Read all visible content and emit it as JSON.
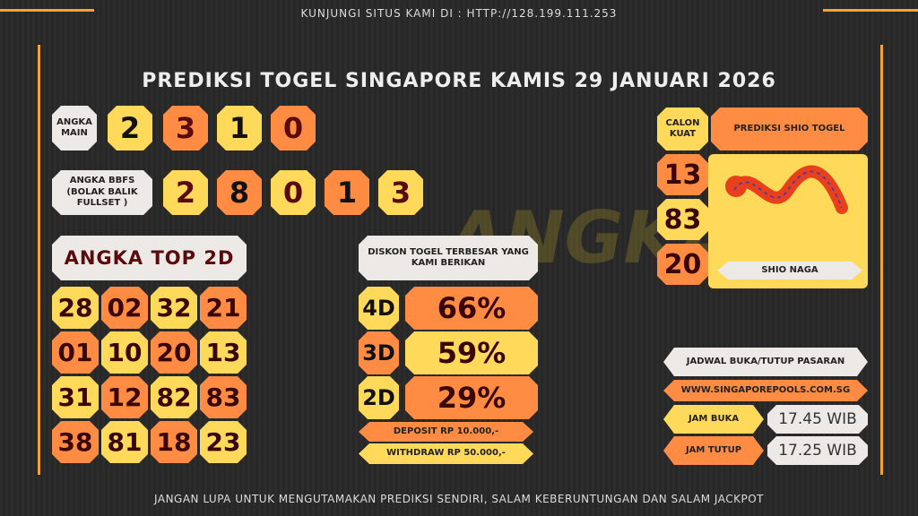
{
  "header": {
    "top_note": "KUNJUNGI SITUS KAMI DI : HTTP://128.199.111.253",
    "title": "PREDIKSI TOGEL SINGAPORE KAMIS 29 JANUARI 2026"
  },
  "angka_main": {
    "label": "ANGKA MAIN",
    "digits": [
      "2",
      "3",
      "1",
      "0"
    ]
  },
  "bbfs": {
    "label": "ANGKA BBFS (BOLAK BALIK FULLSET )",
    "digits": [
      "2",
      "8",
      "0",
      "1",
      "3"
    ]
  },
  "top2d": {
    "label": "ANGKA TOP 2D",
    "rows": [
      [
        "28",
        "02",
        "32",
        "21"
      ],
      [
        "01",
        "10",
        "20",
        "13"
      ],
      [
        "31",
        "12",
        "82",
        "83"
      ],
      [
        "38",
        "81",
        "18",
        "23"
      ]
    ]
  },
  "diskon": {
    "label": "DISKON TOGEL TERBESAR YANG KAMI BERIKAN",
    "items": [
      {
        "type": "4D",
        "value": "66%"
      },
      {
        "type": "3D",
        "value": "59%"
      },
      {
        "type": "2D",
        "value": "29%"
      }
    ],
    "deposit": "DEPOSIT RP 10.000,-",
    "withdraw": "WITHDRAW RP 50.000,-"
  },
  "shio": {
    "calon_label": "CALON KUAT",
    "title": "PREDIKSI SHIO TOGEL",
    "numbers": [
      "13",
      "83",
      "20"
    ],
    "name": "SHIO NAGA",
    "icon": "dragon-icon"
  },
  "jadwal": {
    "title": "JADWAL BUKA/TUTUP PASARAN",
    "site": "WWW.SINGAPOREPOOLS.COM.SG",
    "buka_label": "JAM BUKA",
    "buka": "17.45 WIB",
    "tutup_label": "JAM TUTUP",
    "tutup": "17.25 WIB"
  },
  "watermark": "ANGKA GAIB",
  "footer": "JANGAN LUPA UNTUK MENGUTAMAKAN PREDIKSI SENDIRI, SALAM KEBERUNTUNGAN DAN SALAM JACKPOT",
  "colors": {
    "yellow": "#ffd95a",
    "orange": "#ff8c42",
    "light": "#ece9e6",
    "frame": "#f2a23a"
  }
}
